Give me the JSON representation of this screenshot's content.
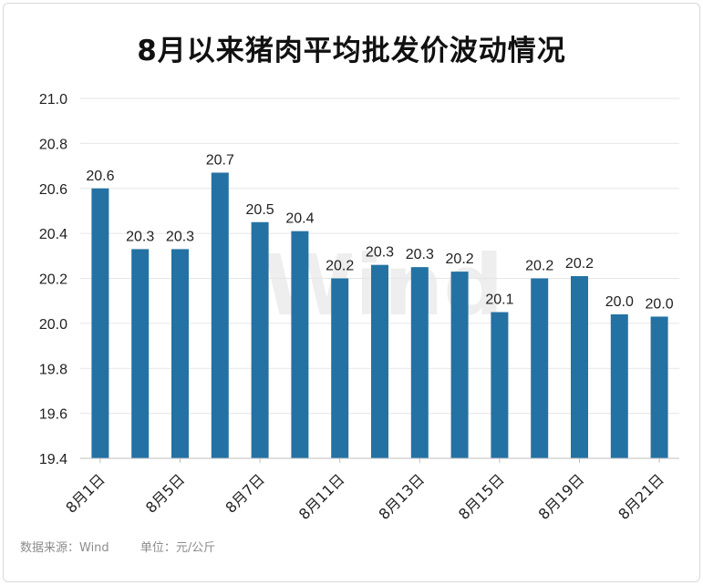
{
  "title": "8月以来猪肉平均批发价波动情况",
  "footer": {
    "source": "数据来源：Wind",
    "unit": "单位：元/公斤"
  },
  "watermark": "Wind",
  "colors": {
    "bar": "#2472a4",
    "grid": "#e6e6e6",
    "axis": "#bfbfbf",
    "text": "#222222"
  },
  "chart_data": {
    "type": "bar",
    "title": "8月以来猪肉平均批发价波动情况",
    "ylim": [
      19.4,
      21.0
    ],
    "yticks": [
      "19.4",
      "19.6",
      "19.8",
      "20.0",
      "20.2",
      "20.4",
      "20.6",
      "20.8",
      "21.0"
    ],
    "grid": true,
    "x_tick_labels": [
      "8月1日",
      "8月5日",
      "8月7日",
      "8月11日",
      "8月13日",
      "8月15日",
      "8月19日",
      "8月21日"
    ],
    "values": [
      20.6,
      20.33,
      20.33,
      20.67,
      20.45,
      20.41,
      20.2,
      20.26,
      20.25,
      20.23,
      20.05,
      20.2,
      20.21,
      20.04,
      20.03
    ],
    "data_labels": [
      "20.6",
      "20.3",
      "20.3",
      "20.7",
      "20.5",
      "20.4",
      "20.2",
      "20.3",
      "20.3",
      "20.2",
      "20.1",
      "20.2",
      "20.2",
      "20.0",
      "20.0"
    ]
  }
}
